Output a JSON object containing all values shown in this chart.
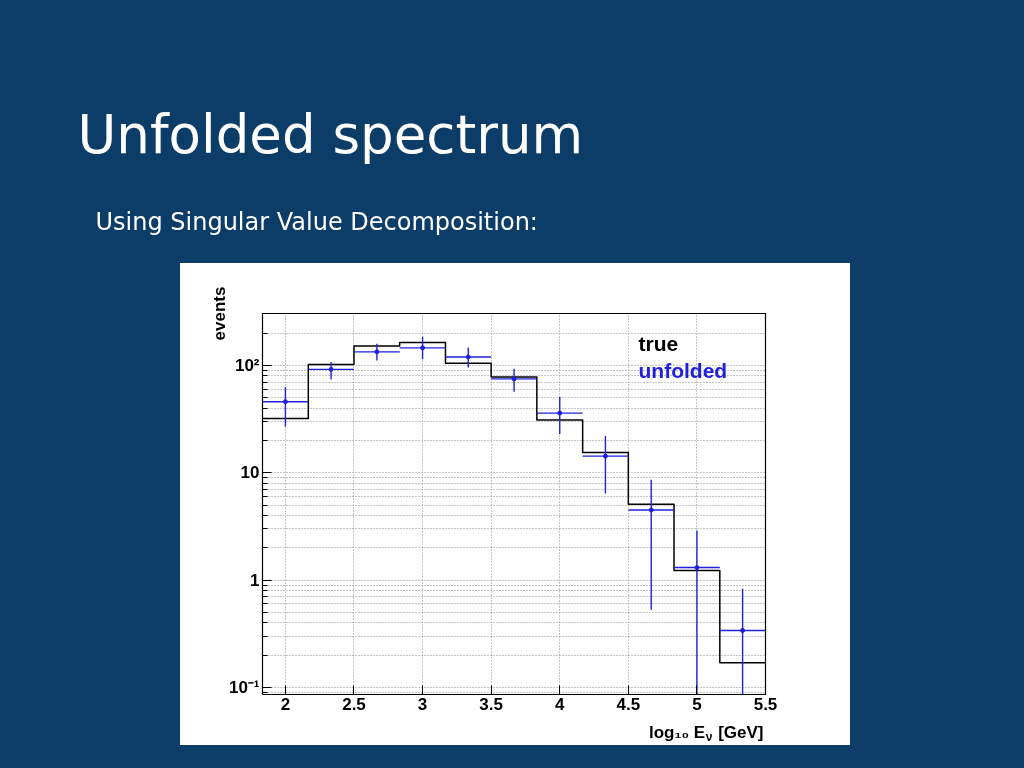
{
  "chart_data": {
    "type": "histogram",
    "title": "Unfolded spectrum",
    "subtitle": "Using Singular Value Decomposition:",
    "xlabel": "log₁₀ E$_{ν}$ [GeV]",
    "ylabel": "events",
    "bins": [
      1.833,
      2.167,
      2.5,
      2.833,
      3.167,
      3.5,
      3.833,
      4.167,
      4.5,
      4.833,
      5.167,
      5.5
    ],
    "series": [
      {
        "name": "true",
        "color": "#000000",
        "values": [
          32,
          102,
          152,
          164,
          105,
          78,
          31,
          15.5,
          5.1,
          1.23,
          0.17
        ]
      },
      {
        "name": "unfolded",
        "type": "scatter",
        "color": "#2020dd",
        "marker": "circle",
        "x": [
          2,
          2.333,
          2.667,
          3,
          3.333,
          3.667,
          4,
          4.333,
          4.667,
          5,
          5.333
        ],
        "values": [
          46,
          92,
          134,
          146,
          120,
          75,
          36,
          14.3,
          4.5,
          1.31,
          0.34
        ],
        "errors": [
          [
            27,
            63
          ],
          [
            74,
            108
          ],
          [
            111,
            159
          ],
          [
            114,
            185
          ],
          [
            96,
            147
          ],
          [
            57,
            93
          ],
          [
            23,
            51
          ],
          [
            6.4,
            22
          ],
          [
            0.53,
            8.6
          ],
          [
            0.086,
            2.9
          ],
          [
            0.086,
            0.83
          ]
        ],
        "xerrors": [
          0.167,
          0.167,
          0.167,
          0.167,
          0.167,
          0.167,
          0.167,
          0.167,
          0.167,
          0.167,
          0.167
        ]
      }
    ],
    "xlim": [
      1.833,
      5.5
    ],
    "ylim": [
      0.086,
      305
    ],
    "xticks": [
      2,
      2.5,
      3,
      3.5,
      4,
      4.5,
      5,
      5.5
    ],
    "yticks": [
      {
        "value": 0.09,
        "label": null
      },
      {
        "value": 0.1,
        "label": "10⁻¹"
      },
      {
        "value": 0.2,
        "label": null
      },
      {
        "value": 0.3,
        "label": null
      },
      {
        "value": 0.4,
        "label": null
      },
      {
        "value": 0.5,
        "label": null
      },
      {
        "value": 0.6,
        "label": null
      },
      {
        "value": 0.7,
        "label": null
      },
      {
        "value": 0.8,
        "label": null
      },
      {
        "value": 0.9,
        "label": null
      },
      1,
      {
        "value": 2,
        "label": null
      },
      {
        "value": 3,
        "label": null
      },
      {
        "value": 4,
        "label": null
      },
      {
        "value": 5,
        "label": null
      },
      {
        "value": 6,
        "label": null
      },
      {
        "value": 7,
        "label": null
      },
      {
        "value": 8,
        "label": null
      },
      {
        "value": 9,
        "label": null
      },
      10,
      {
        "value": 20,
        "label": null
      },
      {
        "value": 30,
        "label": null
      },
      {
        "value": 40,
        "label": null
      },
      {
        "value": 50,
        "label": null
      },
      {
        "value": 60,
        "label": null
      },
      {
        "value": 70,
        "label": null
      },
      {
        "value": 80,
        "label": null
      },
      {
        "value": 90,
        "label": null
      },
      {
        "value": 100,
        "label": "10²"
      },
      {
        "value": 200,
        "label": null
      }
    ],
    "log": "y",
    "grid": true
  }
}
